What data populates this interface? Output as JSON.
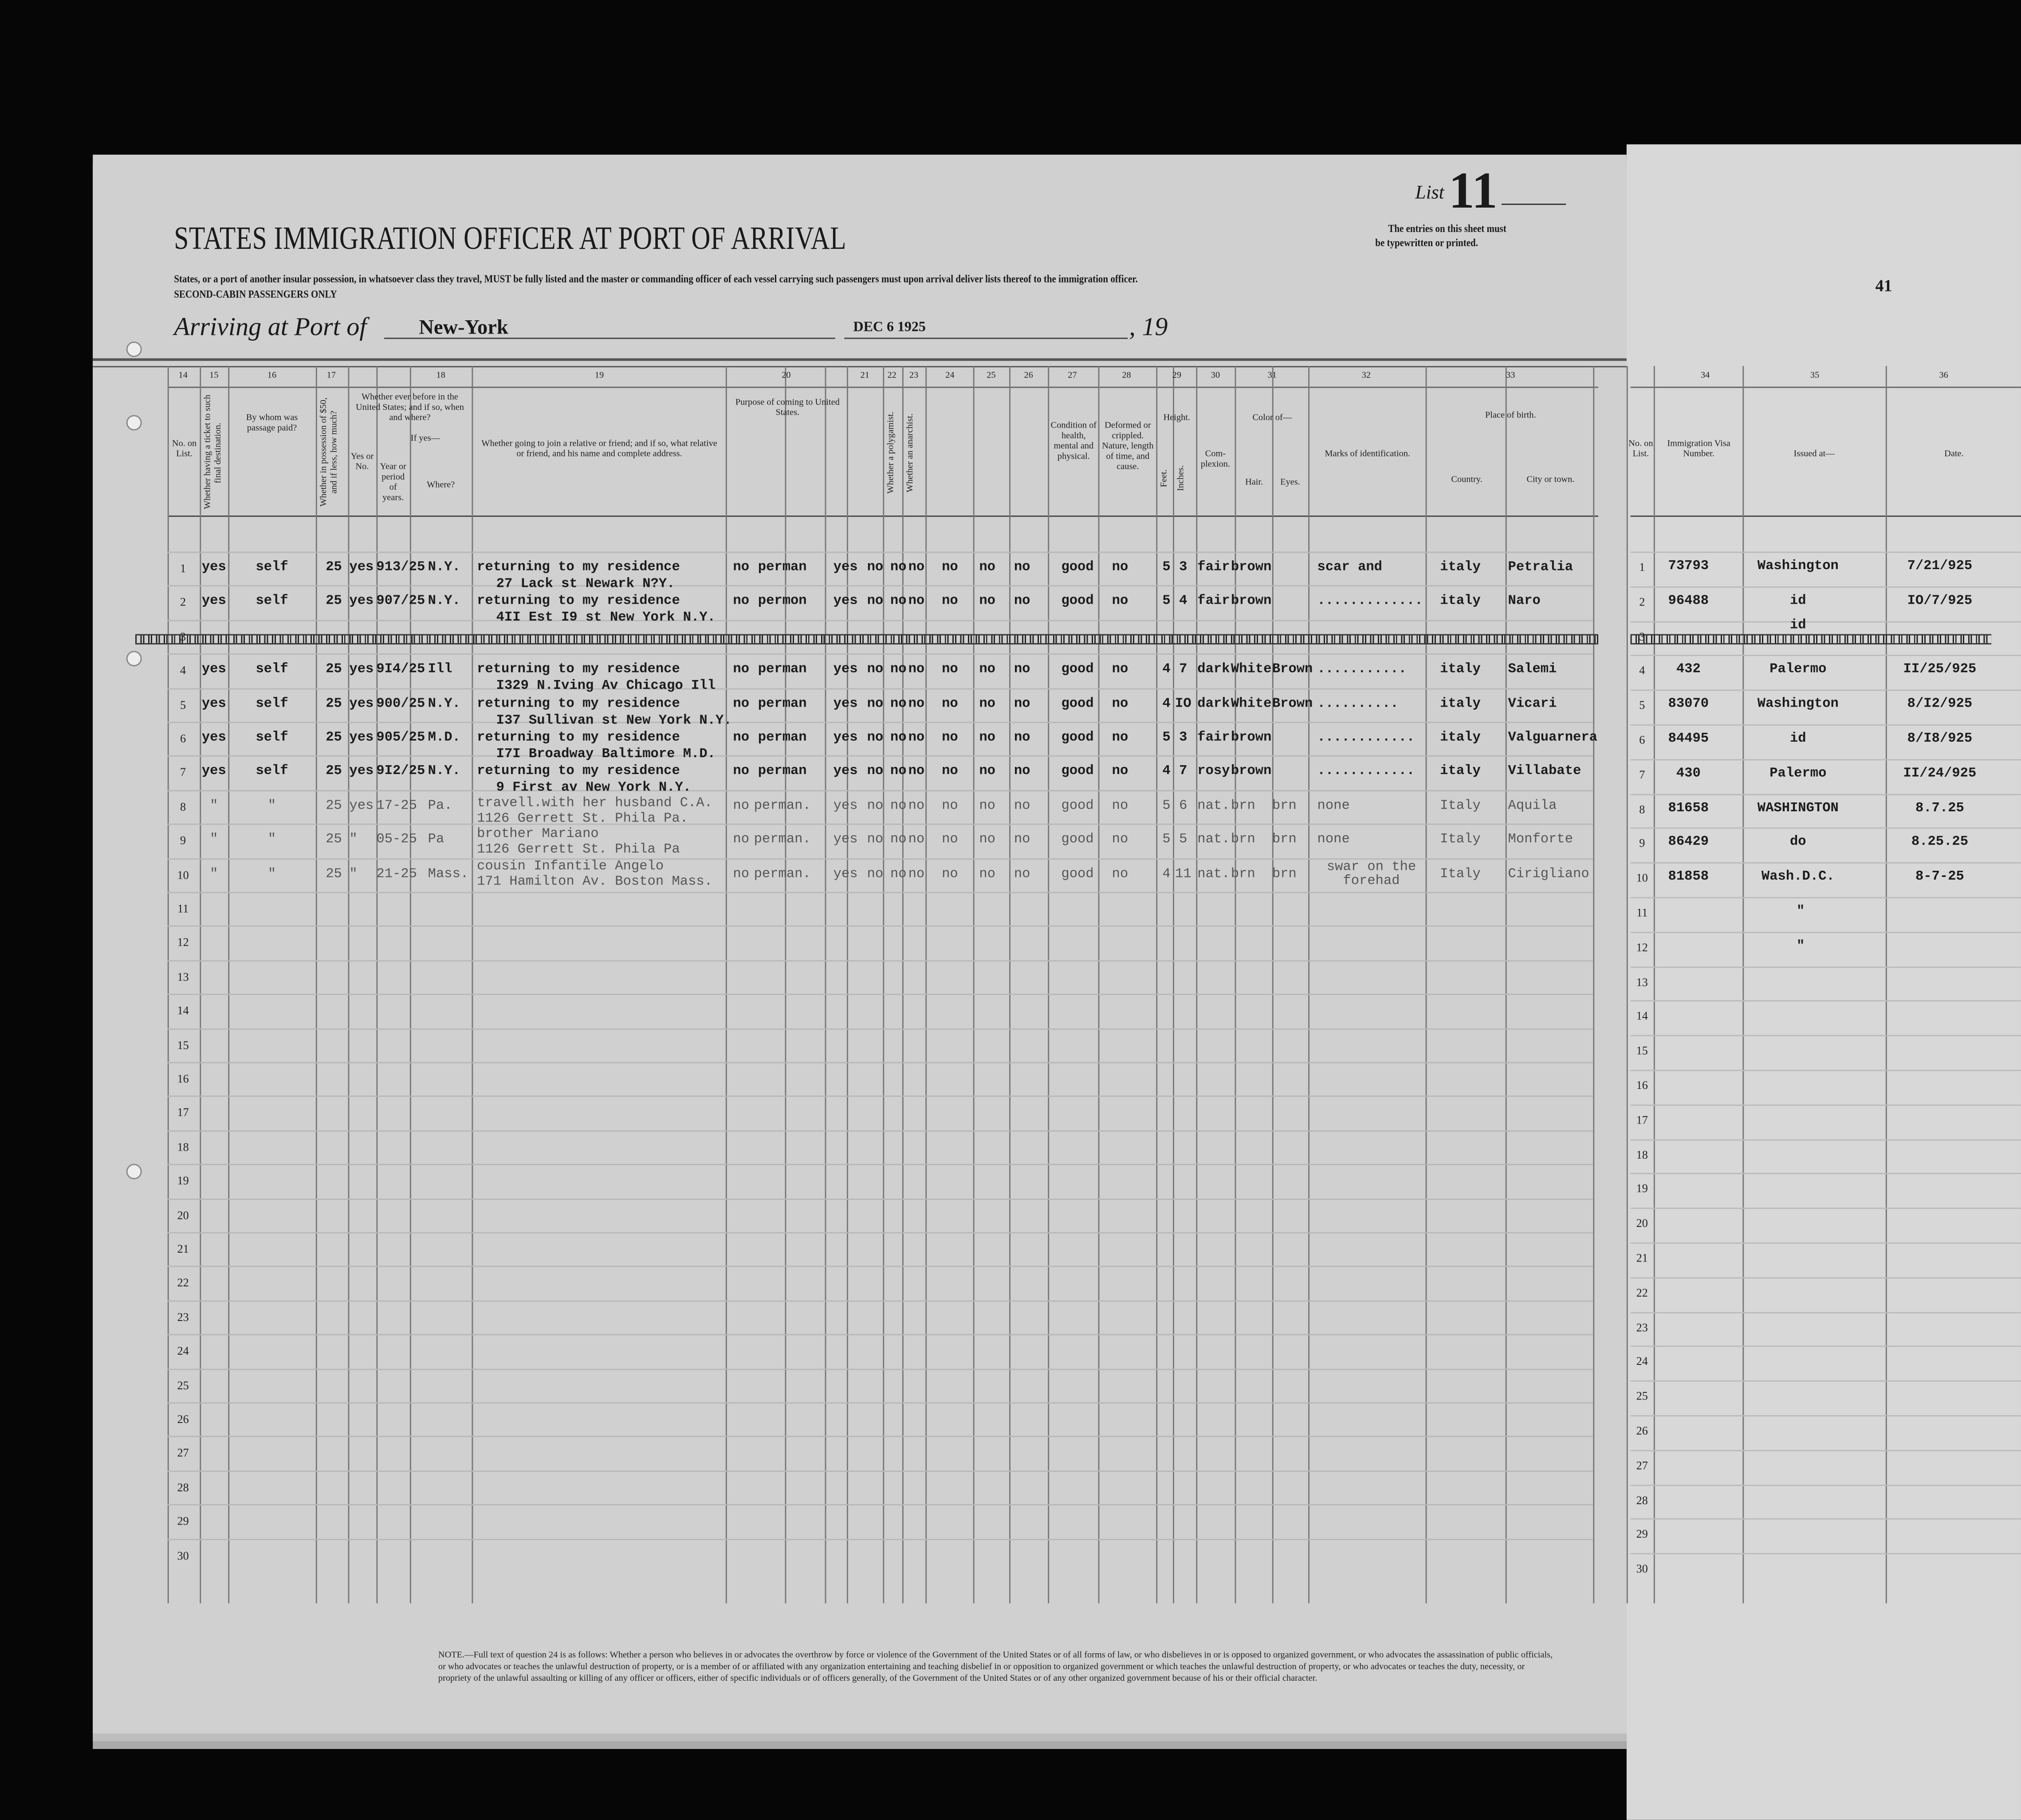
{
  "header": {
    "title": "STATES IMMIGRATION OFFICER AT PORT OF ARRIVAL",
    "list_label": "List",
    "list_number": "11",
    "entries_note_1": "The entries on this sheet must",
    "entries_note_2": "be typewritten or printed.",
    "instructions": "States, or a port of another insular possession, in whatsoever class they travel, MUST be fully listed and the master or commanding officer of each vessel carrying such passengers must upon arrival deliver lists thereof to the immigration officer.",
    "class_line": "SECOND-CABIN PASSENGERS ONLY",
    "arriving_label": "Arriving at Port of",
    "port": "New-York",
    "date_stamp": "DEC 6 1925",
    "year_prefix": ", 19",
    "page_number": "41"
  },
  "columns": {
    "numbers": [
      "14",
      "15",
      "16",
      "17",
      "18",
      "19",
      "20",
      "21",
      "22",
      "23",
      "24",
      "25",
      "26",
      "27",
      "28",
      "29",
      "30",
      "31",
      "32",
      "33"
    ],
    "labels": {
      "no_on_list": "No. on List.",
      "ticket": "Whether having a ticket to such final destination.",
      "paid_by": "By whom was passage paid?",
      "money": "Whether in possession of $50, and if less, how much?",
      "before": "Whether ever before in the United States; and if so, when and where?",
      "yes_no": "Yes or No.",
      "if_yes": "If yes—",
      "period": "Year or period of years.",
      "where": "Where?",
      "joining": "Whether going to join a relative or friend; and if so, what relative or friend, and his name and complete address.",
      "purpose": "Purpose of coming to United States.",
      "polygamist": "Whether a polygamist.",
      "anarchist": "Whether an anarchist.",
      "health": "Condition of health, mental and physical.",
      "deformed": "Deformed or crippled. Nature, length of time, and cause.",
      "height": "Height.",
      "feet": "Feet.",
      "inches": "Inches.",
      "complexion": "Com-plexion.",
      "color_of": "Color of—",
      "hair": "Hair.",
      "eyes": "Eyes.",
      "marks": "Marks of identification.",
      "birth": "Place of birth.",
      "country": "Country.",
      "city": "City or town."
    },
    "right_numbers": [
      "34",
      "35",
      "36"
    ],
    "right_labels": {
      "no_on_list": "No. on List.",
      "visa": "Immigration Visa Number.",
      "issued": "Issued at—",
      "date": "Date."
    }
  },
  "rows": [
    {
      "no": "1",
      "c": [
        "yes",
        "self",
        "25",
        "yes",
        "913/25",
        "N.Y.",
        "no",
        "perman",
        "yes",
        "no",
        "no",
        "no",
        "no",
        "no",
        "no",
        "good",
        "no",
        "5",
        "3",
        "fair",
        "brown",
        "",
        "scar and",
        "italy",
        "Petralia"
      ],
      "joining": "returning to my residence",
      "address": "27 Lack st     Newark N?Y.",
      "visa": {
        "no": "1",
        "number": "73793",
        "issued": "Washington",
        "date": "7/21/925"
      }
    },
    {
      "no": "2",
      "c": [
        "yes",
        "self",
        "25",
        "yes",
        "907/25",
        "N.Y.",
        "no",
        "permon",
        "yes",
        "no",
        "no",
        "no",
        "no",
        "no",
        "no",
        "good",
        "no",
        "5",
        "4",
        "fair",
        "brown",
        "",
        ".............",
        "italy",
        "Naro"
      ],
      "joining": "returning to my residence",
      "address": "4II Est I9 st    New York N.Y.",
      "visa": {
        "no": "2",
        "number": "96488",
        "issued": "id",
        "date": "IO/7/925"
      }
    },
    {
      "no": "3",
      "cancelled": true,
      "visa": {
        "no": "3",
        "number": "",
        "issued": "id",
        "date": ""
      }
    },
    {
      "no": "4",
      "c": [
        "yes",
        "self",
        "25",
        "yes",
        "9I4/25",
        "Ill",
        "no",
        "perman",
        "yes",
        "no",
        "no",
        "no",
        "no",
        "no",
        "no",
        "good",
        "no",
        "4",
        "7",
        "dark",
        "White",
        "Brown",
        "...........",
        "italy",
        "Salemi"
      ],
      "joining": "returning to my residence",
      "address": "I329 N.Iving Av   Chicago Ill",
      "visa": {
        "no": "4",
        "number": "432",
        "issued": "Palermo",
        "date": "II/25/925"
      }
    },
    {
      "no": "5",
      "c": [
        "yes",
        "self",
        "25",
        "yes",
        "900/25",
        "N.Y.",
        "no",
        "perman",
        "yes",
        "no",
        "no",
        "no",
        "no",
        "no",
        "no",
        "good",
        "no",
        "4",
        "IO",
        "dark",
        "White",
        "Brown",
        "..........",
        "italy",
        "Vicari"
      ],
      "joining": "returning to my residence",
      "address": "I37 Sullivan st     New York N.Y.",
      "visa": {
        "no": "5",
        "number": "83070",
        "issued": "Washington",
        "date": "8/I2/925"
      }
    },
    {
      "no": "6",
      "c": [
        "yes",
        "self",
        "25",
        "yes",
        "905/25",
        "M.D.",
        "no",
        "perman",
        "yes",
        "no",
        "no",
        "no",
        "no",
        "no",
        "no",
        "good",
        "no",
        "5",
        "3",
        "fair",
        "brown",
        "",
        "............",
        "italy",
        "Valguarnera"
      ],
      "joining": "returning to my residence",
      "address": "I7I Broadway       Baltimore M.D.",
      "visa": {
        "no": "6",
        "number": "84495",
        "issued": "id",
        "date": "8/I8/925"
      }
    },
    {
      "no": "7",
      "c": [
        "yes",
        "self",
        "25",
        "yes",
        "9I2/25",
        "N.Y.",
        "no",
        "perman",
        "yes",
        "no",
        "no",
        "no",
        "no",
        "no",
        "no",
        "good",
        "no",
        "4",
        "7",
        "rosy",
        "brown",
        "",
        "............",
        "italy",
        "Villabate"
      ],
      "joining": "returning to my residence",
      "address": "9 First av     New York N.Y.",
      "visa": {
        "no": "7",
        "number": "430",
        "issued": "Palermo",
        "date": "II/24/925"
      }
    },
    {
      "no": "8",
      "c": [
        "\"",
        "\"",
        "25",
        "yes",
        "17-25",
        "Pa.",
        "",
        "no",
        "perman.",
        "yes",
        "no",
        "no",
        "no",
        "no",
        "no",
        "no",
        "good",
        "no",
        "5",
        "6",
        "nat.",
        "brn",
        "brn",
        "none",
        "Italy",
        "Aquila"
      ],
      "joining": "travell.with her husband C.A.",
      "address": "1126 Gerrett St. Phila Pa.",
      "visa": {
        "no": "8",
        "number": "81658",
        "issued": "WASHINGTON",
        "date": "8.7.25"
      }
    },
    {
      "no": "9",
      "c": [
        "\"",
        "\"",
        "25",
        "\"",
        "05-25",
        "Pa",
        "",
        "no",
        "perman.",
        "yes",
        "no",
        "no",
        "no",
        "no",
        "no",
        "no",
        "good",
        "no",
        "5",
        "5",
        "nat.",
        "brn",
        "brn",
        "none",
        "Italy",
        "Monforte"
      ],
      "joining": "brother Mariano",
      "address": "1126 Gerrett St. Phila Pa",
      "visa": {
        "no": "9",
        "number": "86429",
        "issued": "do",
        "date": "8.25.25"
      }
    },
    {
      "no": "10",
      "c": [
        "\"",
        "\"",
        "25",
        "\"",
        "21-25",
        "Mass.",
        "",
        "no",
        "perman.",
        "yes",
        "no",
        "no",
        "no",
        "no",
        "no",
        "no",
        "good",
        "no",
        "4",
        "11",
        "nat.",
        "brn",
        "brn",
        "swar on the forehad",
        "Italy",
        "Cirigliano"
      ],
      "joining": "cousin Infantile Angelo",
      "address": "171 Hamilton Av. Boston Mass.",
      "visa": {
        "no": "10",
        "number": "81858",
        "issued": "Wash.D.C.",
        "date": "8-7-25"
      }
    }
  ],
  "empty_rows": [
    "11",
    "12",
    "13",
    "14",
    "15",
    "16",
    "17",
    "18",
    "19",
    "20",
    "21",
    "22",
    "23",
    "24",
    "25",
    "26",
    "27",
    "28",
    "29",
    "30"
  ],
  "right_empty_marks": [
    "\"",
    "\""
  ],
  "footnote": "NOTE.—Full text of question 24 is as follows: Whether a person who believes in or advocates the overthrow by force or violence of the Government of the United States or of all forms of law, or who disbelieves in or is opposed to organized government, or who advocates the assassination of public officials, or who advocates or teaches the unlawful destruction of property, or is a member of or affiliated with any organization entertaining and teaching disbelief in or opposition to organized government or which teaches the unlawful destruction of property, or who advocates or teaches the duty, necessity, or propriety of the unlawful assaulting or killing of any officer or officers, either of specific individuals or of officers generally, of the Government of the United States or of any other organized government because of his or their official character."
}
